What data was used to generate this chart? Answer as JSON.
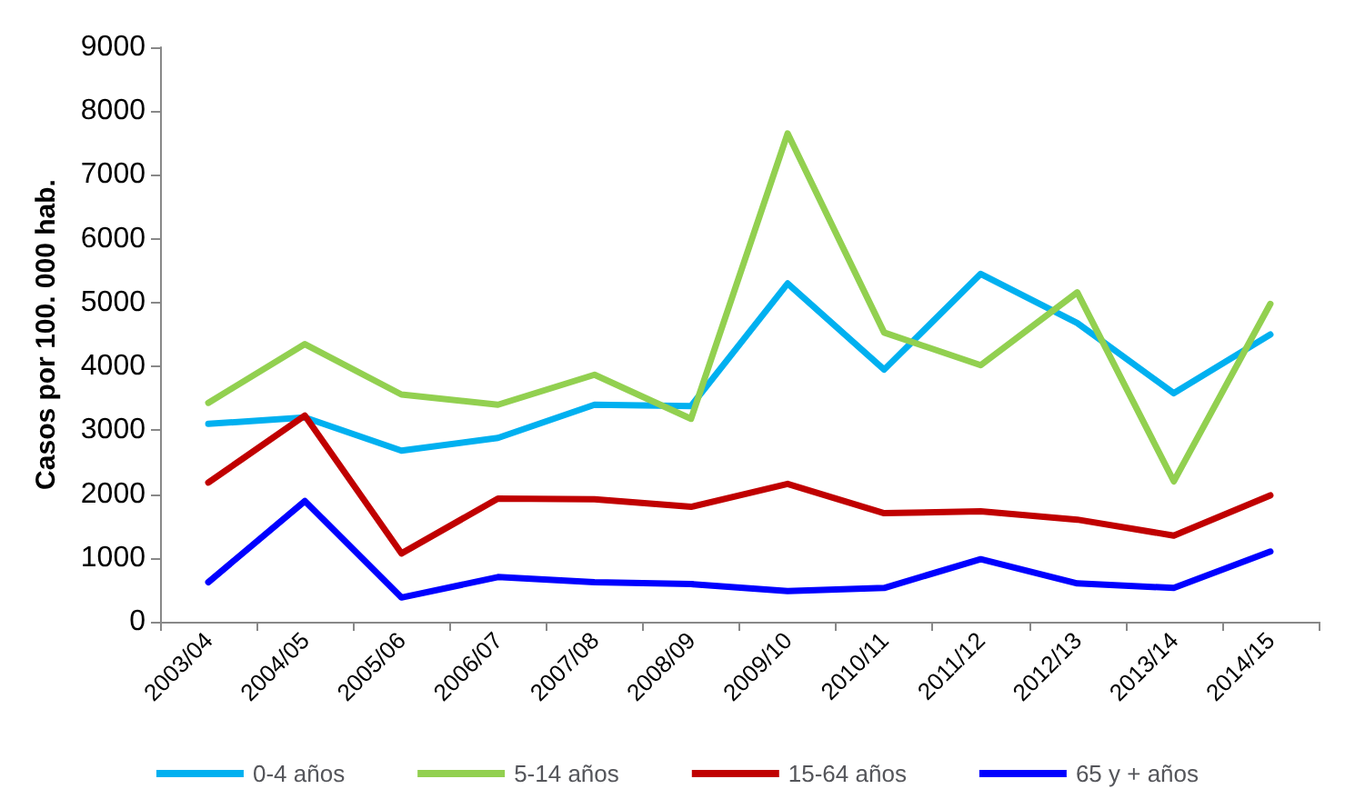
{
  "chart_data": {
    "type": "line",
    "ylabel": "Casos por 100. 000 hab.",
    "categories": [
      "2003/04",
      "2004/05",
      "2005/06",
      "2006/07",
      "2007/08",
      "2008/09",
      "2009/10",
      "2010/11",
      "2011/12",
      "2012/13",
      "2013/14",
      "2014/15"
    ],
    "series": [
      {
        "name": "0-4 años",
        "color": "#00b0f0",
        "values": [
          3100,
          3200,
          2680,
          2880,
          3400,
          3380,
          5300,
          3950,
          5450,
          4680,
          3580,
          4500
        ]
      },
      {
        "name": "5-14 años",
        "color": "#92d050",
        "values": [
          3430,
          4350,
          3560,
          3400,
          3870,
          3180,
          7650,
          4530,
          4020,
          5160,
          2200,
          4980
        ]
      },
      {
        "name": "15-64 años",
        "color": "#c00000",
        "values": [
          2180,
          3230,
          1070,
          1930,
          1920,
          1800,
          2160,
          1700,
          1730,
          1600,
          1350,
          1980
        ]
      },
      {
        "name": "65 y + años",
        "color": "#0000ff",
        "values": [
          620,
          1890,
          380,
          700,
          620,
          590,
          480,
          530,
          980,
          600,
          530,
          1100
        ]
      }
    ],
    "ylim": [
      0,
      9000
    ],
    "yticks": [
      0,
      1000,
      2000,
      3000,
      4000,
      5000,
      6000,
      7000,
      8000,
      9000
    ],
    "grid": false,
    "legend": "bottom",
    "marker": "none",
    "line_style": "solid"
  }
}
